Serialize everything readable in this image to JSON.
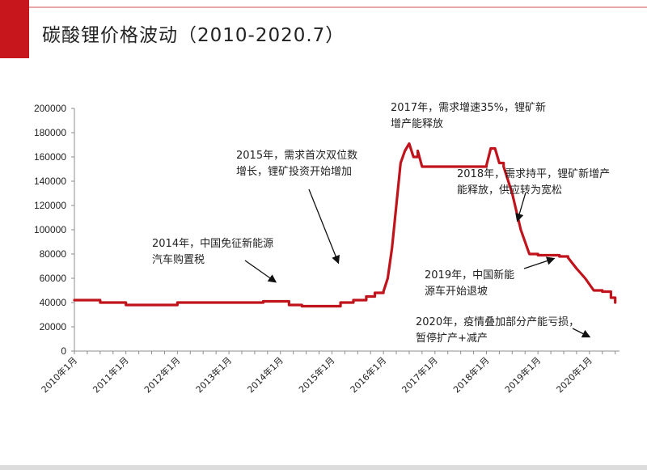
{
  "title": "碳酸锂价格波动（2010-2020.7）",
  "chart_data": {
    "type": "line",
    "title": "碳酸锂价格波动（2010-2020.7）",
    "xlabel": "",
    "ylabel": "",
    "ylim": [
      0,
      200000
    ],
    "yticks": [
      "0",
      "20000",
      "40000",
      "60000",
      "80000",
      "100000",
      "120000",
      "140000",
      "160000",
      "180000",
      "200000"
    ],
    "xticks": [
      "2010年1月",
      "2011年1月",
      "2012年1月",
      "2013年1月",
      "2014年1月",
      "2015年1月",
      "2016年1月",
      "2017年1月",
      "2018年1月",
      "2019年1月",
      "2020年1月"
    ],
    "grid": false,
    "color": "#c0131b",
    "series": [
      {
        "name": "",
        "x": [
          "2010-01",
          "2010-06",
          "2010-07",
          "2010-10",
          "2011-01",
          "2011-06",
          "2012-01",
          "2012-06",
          "2013-01",
          "2013-06",
          "2013-09",
          "2014-01",
          "2014-03",
          "2014-06",
          "2014-09",
          "2015-01",
          "2015-03",
          "2015-06",
          "2015-09",
          "2015-11",
          "2016-01",
          "2016-02",
          "2016-03",
          "2016-04",
          "2016-05",
          "2016-06",
          "2016-07",
          "2016-08",
          "2016-09",
          "2016-10",
          "2017-01",
          "2017-06",
          "2017-09",
          "2017-12",
          "2018-01",
          "2018-02",
          "2018-03",
          "2018-04",
          "2018-05",
          "2018-07",
          "2018-09",
          "2018-11",
          "2019-01",
          "2019-03",
          "2019-06",
          "2019-08",
          "2019-10",
          "2019-12",
          "2020-02",
          "2020-04",
          "2020-06",
          "2020-07"
        ],
        "y": [
          42000,
          42000,
          40000,
          40000,
          38000,
          38000,
          40000,
          40000,
          40000,
          40000,
          41000,
          41000,
          38000,
          37000,
          37000,
          37000,
          40000,
          42000,
          45000,
          48000,
          49000,
          60000,
          85000,
          120000,
          155000,
          165000,
          171000,
          160000,
          165000,
          152000,
          152000,
          152000,
          152000,
          152000,
          153000,
          167000,
          167000,
          155000,
          152000,
          130000,
          100000,
          80000,
          79000,
          79000,
          78000,
          77000,
          68000,
          60000,
          50000,
          49000,
          44000,
          40000
        ]
      }
    ],
    "annotations": [
      {
        "lines": [
          "2014年，中国免征新能源",
          "汽车购置税"
        ]
      },
      {
        "lines": [
          "2015年，需求首次双位数",
          "增长，锂矿投资开始增加"
        ]
      },
      {
        "lines": [
          "2017年，需求增速35%，锂矿新",
          "增产能释放"
        ]
      },
      {
        "lines": [
          "2018年，需求持平，锂矿新增产",
          "能释放，供应转为宽松"
        ]
      },
      {
        "lines": [
          "2019年，中国新能",
          "源车开始退坡"
        ]
      },
      {
        "lines": [
          "2020年，疫情叠加部分产能亏损，",
          "暂停扩产+减产"
        ]
      }
    ]
  }
}
